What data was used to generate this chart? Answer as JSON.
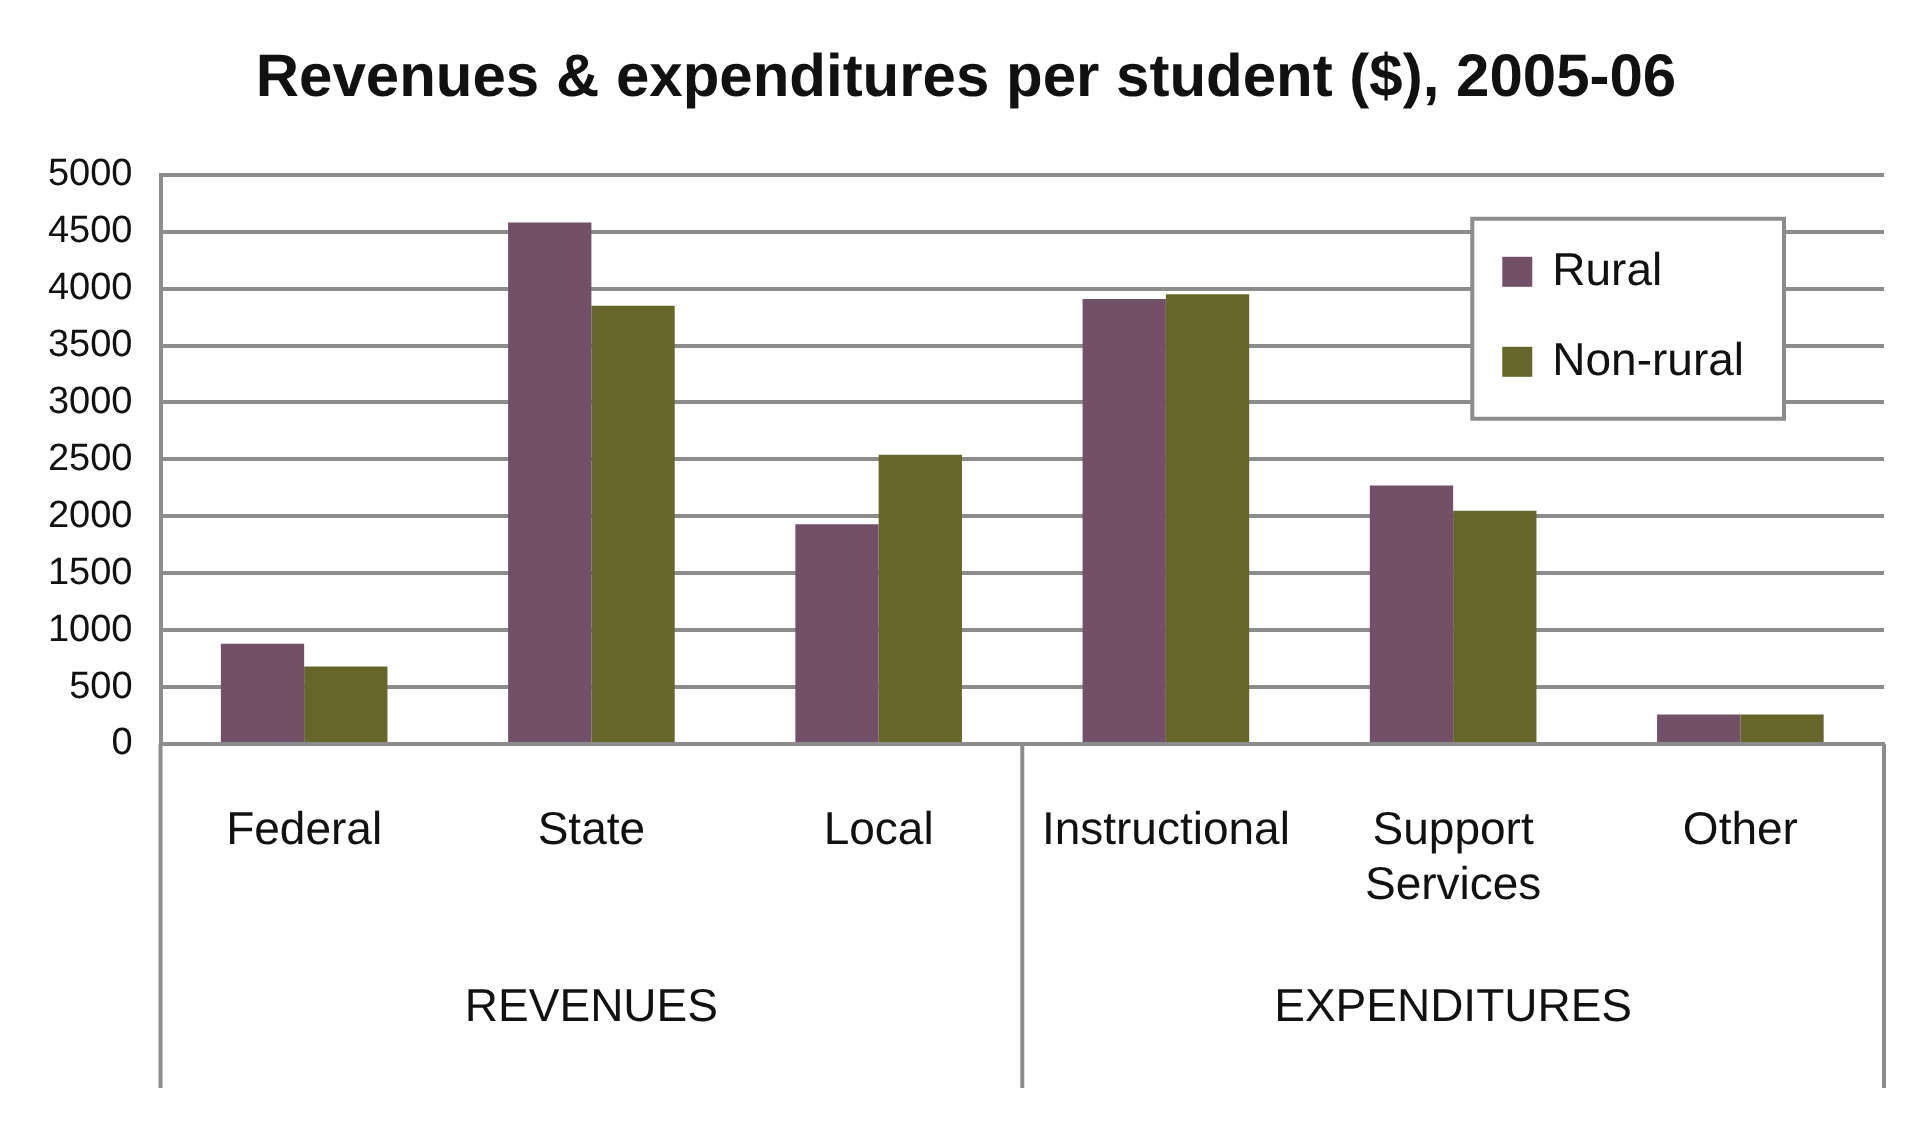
{
  "chart_data": {
    "type": "bar",
    "title": "Revenues & expenditures per student ($), 2005-06",
    "categories": [
      "Federal",
      "State",
      "Local",
      "Instructional",
      "Support Services",
      "Other"
    ],
    "series": [
      {
        "name": "Rural",
        "color": "#725168",
        "values": [
          880,
          4580,
          1930,
          3910,
          2270,
          260
        ]
      },
      {
        "name": "Non-rural",
        "color": "#66662b",
        "values": [
          680,
          3850,
          2540,
          3950,
          2050,
          260
        ]
      }
    ],
    "ylim": [
      0,
      5000
    ],
    "yticks": [
      0,
      500,
      1000,
      1500,
      2000,
      2500,
      3000,
      3500,
      4000,
      4500,
      5000
    ],
    "grid": "y",
    "legend": "top right",
    "annotations": [
      "REVENUES",
      "EXPENDITURES"
    ]
  }
}
